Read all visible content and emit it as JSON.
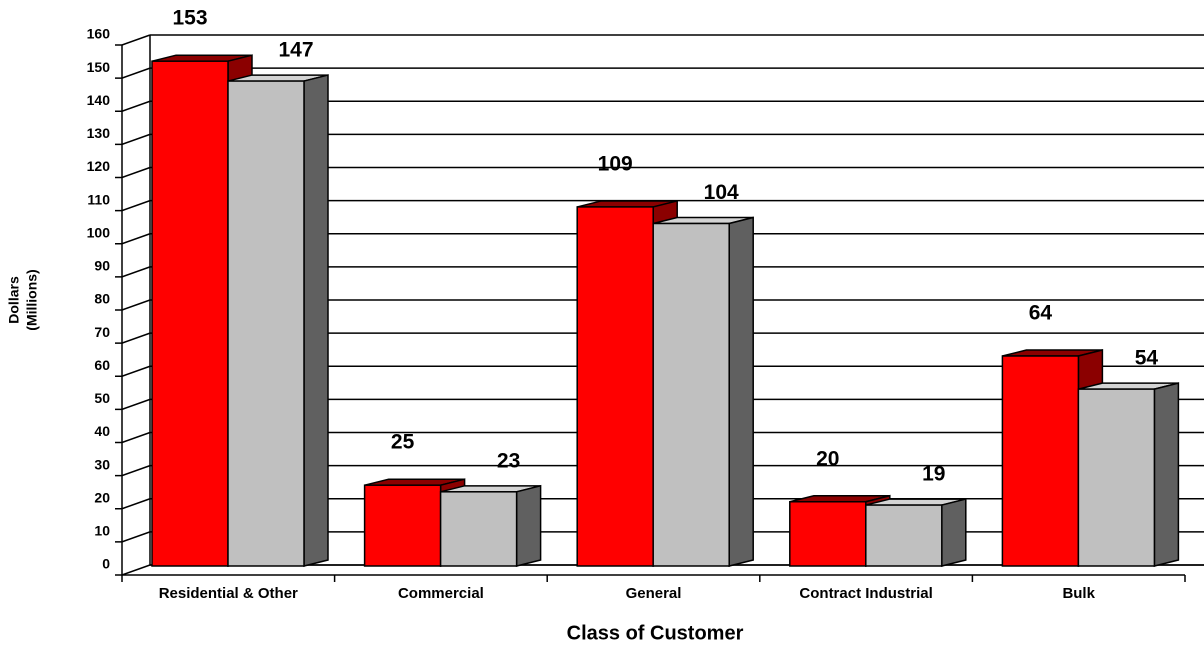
{
  "chart_data": {
    "type": "bar3d",
    "ylabel": [
      "Dollars",
      "(Millions)"
    ],
    "xlabel": "Class of Customer",
    "categories": [
      "Residential & Other",
      "Commercial",
      "General",
      "Contract Industrial",
      "Bulk"
    ],
    "series": [
      {
        "color": "#ff0000",
        "shade_color": "#8b0000",
        "values": [
          153,
          25,
          109,
          20,
          64
        ]
      },
      {
        "color": "#c0c0c0",
        "shade_color": "#606060",
        "values": [
          147,
          23,
          104,
          19,
          54
        ]
      }
    ],
    "ylim": [
      0,
      160
    ],
    "yticks": [
      0,
      10,
      20,
      30,
      40,
      50,
      60,
      70,
      80,
      90,
      100,
      110,
      120,
      130,
      140,
      150,
      160
    ],
    "grid": true
  }
}
